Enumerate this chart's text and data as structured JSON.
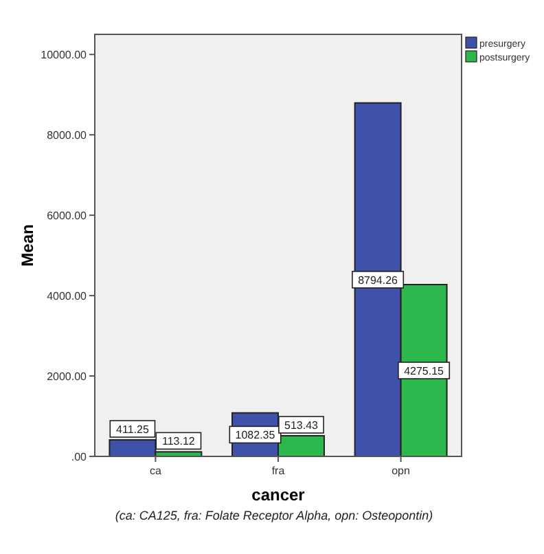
{
  "chart_data": {
    "type": "bar",
    "xlabel": "cancer",
    "ylabel": "Mean",
    "categories": [
      "ca",
      "fra",
      "opn"
    ],
    "series": [
      {
        "name": "presurgery",
        "color": "#3f51a9",
        "values": [
          411.25,
          1082.35,
          8794.26
        ]
      },
      {
        "name": "postsurgery",
        "color": "#2db84d",
        "values": [
          113.12,
          513.43,
          4275.15
        ]
      }
    ],
    "ylim": [
      0,
      10500
    ],
    "yticks": [
      {
        "value": 0,
        "label": ".00"
      },
      {
        "value": 2000,
        "label": "2000.00"
      },
      {
        "value": 4000,
        "label": "4000.00"
      },
      {
        "value": 6000,
        "label": "6000.00"
      },
      {
        "value": 8000,
        "label": "8000.00"
      },
      {
        "value": 10000,
        "label": "10000.00"
      }
    ],
    "data_labels": true,
    "legend": "top right",
    "grid": false,
    "annotations": [
      "(ca: CA125, fra: Folate Receptor Alpha, opn: Osteopontin)"
    ]
  }
}
